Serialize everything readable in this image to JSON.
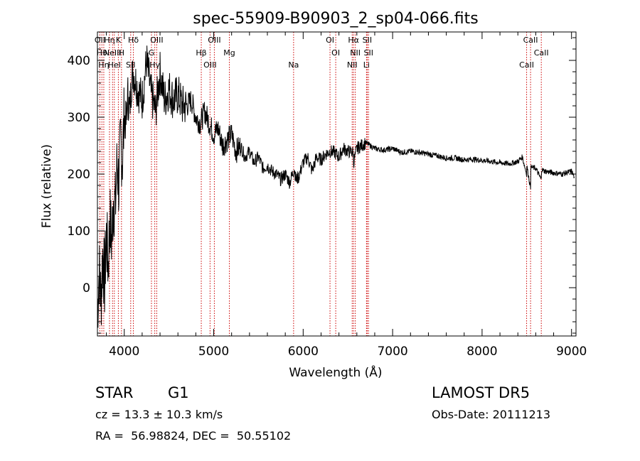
{
  "chart_data": {
    "type": "line",
    "title": "spec-55909-B90903_2_sp04-066.fits",
    "xlabel": "Wavelength (Å)",
    "ylabel": "Flux (relative)",
    "xlim": [
      3700,
      9050
    ],
    "ylim": [
      -85,
      450
    ],
    "xticks": [
      4000,
      5000,
      6000,
      7000,
      8000,
      9000
    ],
    "yticks": [
      0,
      100,
      200,
      300,
      400
    ],
    "grid": false,
    "line_color": "#000000",
    "marker_color": "#cc0000",
    "series": [
      {
        "x": [
          3700,
          3720,
          3740,
          3760,
          3780,
          3800,
          3820,
          3840,
          3860,
          3880,
          3900,
          3920,
          3940,
          3960,
          3980,
          4000,
          4020,
          4040,
          4060,
          4080,
          4100,
          4150,
          4200,
          4250,
          4300,
          4350,
          4400,
          4450,
          4500,
          4550,
          4600,
          4650,
          4700,
          4750,
          4800,
          4850,
          4900,
          4950,
          5000,
          5050,
          5100,
          5150,
          5200,
          5250,
          5300,
          5350,
          5400,
          5450,
          5500,
          5550,
          5600,
          5650,
          5700,
          5750,
          5800,
          5850,
          5900,
          5920,
          5950,
          6000,
          6050,
          6100,
          6150,
          6200,
          6250,
          6300,
          6350,
          6400,
          6450,
          6500,
          6560,
          6563,
          6600,
          6650,
          6700,
          6750,
          6800,
          6900,
          7000,
          7100,
          7200,
          7300,
          7400,
          7500,
          7600,
          7700,
          7800,
          7900,
          8000,
          8100,
          8200,
          8300,
          8400,
          8450,
          8498,
          8500,
          8542,
          8545,
          8600,
          8662,
          8665,
          8700,
          8800,
          8900,
          9000,
          9030
        ],
        "values": [
          -40,
          30,
          -20,
          60,
          10,
          90,
          40,
          120,
          80,
          160,
          140,
          220,
          180,
          260,
          230,
          300,
          290,
          340,
          310,
          360,
          380,
          350,
          330,
          400,
          340,
          310,
          380,
          330,
          350,
          330,
          340,
          320,
          320,
          330,
          300,
          290,
          310,
          290,
          270,
          280,
          250,
          260,
          270,
          240,
          250,
          230,
          240,
          220,
          230,
          210,
          215,
          205,
          200,
          190,
          200,
          185,
          210,
          190,
          195,
          220,
          230,
          205,
          230,
          225,
          235,
          240,
          238,
          230,
          245,
          240,
          238,
          220,
          245,
          250,
          255,
          250,
          245,
          242,
          245,
          238,
          240,
          238,
          235,
          232,
          228,
          228,
          225,
          226,
          224,
          222,
          220,
          218,
          222,
          230,
          200,
          215,
          175,
          212,
          210,
          190,
          208,
          205,
          202,
          200,
          205,
          195
        ]
      }
    ],
    "lines": [
      {
        "wl": 3727,
        "label": "OII"
      },
      {
        "wl": 3750,
        "label": "Hθ"
      },
      {
        "wl": 3771,
        "label": "Hη"
      },
      {
        "wl": 3835,
        "label": "Hη"
      },
      {
        "wl": 3869,
        "label": "NeIII"
      },
      {
        "wl": 3889,
        "label": "HeI"
      },
      {
        "wl": 3934,
        "label": "K"
      },
      {
        "wl": 3969,
        "label": "H"
      },
      {
        "wl": 4072,
        "label": "SII"
      },
      {
        "wl": 4102,
        "label": "Hδ"
      },
      {
        "wl": 4304,
        "label": "G"
      },
      {
        "wl": 4341,
        "label": "Hγ"
      },
      {
        "wl": 4363,
        "label": "OIII"
      },
      {
        "wl": 4861,
        "label": "Hβ"
      },
      {
        "wl": 4959,
        "label": "OIII"
      },
      {
        "wl": 5007,
        "label": "OIII"
      },
      {
        "wl": 5175,
        "label": "Mg"
      },
      {
        "wl": 5893,
        "label": "Na"
      },
      {
        "wl": 6300,
        "label": "OI"
      },
      {
        "wl": 6364,
        "label": "OI"
      },
      {
        "wl": 6548,
        "label": "NII"
      },
      {
        "wl": 6563,
        "label": "Hα"
      },
      {
        "wl": 6583,
        "label": "NII"
      },
      {
        "wl": 6708,
        "label": "Li"
      },
      {
        "wl": 6716,
        "label": "SII"
      },
      {
        "wl": 6731,
        "label": "SII"
      },
      {
        "wl": 8498,
        "label": "CaII"
      },
      {
        "wl": 8542,
        "label": "CaII"
      },
      {
        "wl": 8662,
        "label": "CaII"
      }
    ]
  },
  "info": {
    "class": "STAR",
    "subclass": "G1",
    "survey": "LAMOST DR5",
    "cz": "cz = 13.3 ± 10.3 km/s",
    "obsdate": "Obs-Date: 20111213",
    "radec": "RA =  56.98824, DEC =  50.55102"
  }
}
